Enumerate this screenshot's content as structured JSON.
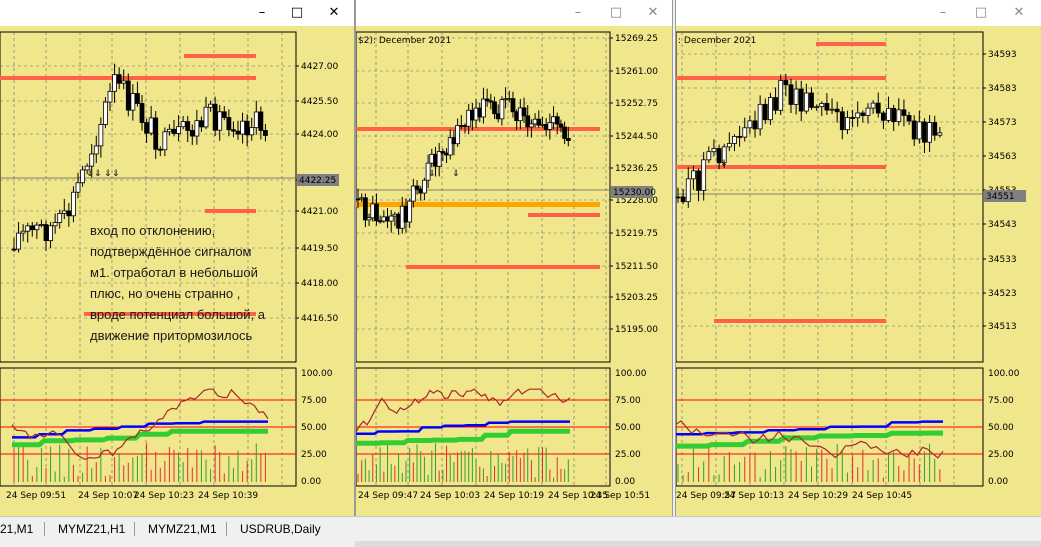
{
  "windows": [
    {
      "id": "w1",
      "active": true,
      "header": "",
      "price_ticks": [
        "4427.00",
        "4425.50",
        "4424.00",
        "4422.25",
        "4421.00",
        "4419.50",
        "4418.00",
        "4416.50"
      ],
      "current_price": "4422.25",
      "indicator_ticks": [
        "100.00",
        "75.00",
        "50.00",
        "25.00",
        "0.00"
      ],
      "time_ticks": [
        "24 Sep 09:51",
        "24 Sep 10:07",
        "24 Sep 10:23",
        "24 Sep 10:39"
      ],
      "annotation": "вход по отклонению,\nподтверждённое сигналом\nм1. отработал в небольшой\nплюс, но очень странно ,\nвроде потенциал большой, а\nдвижение притормозилось"
    },
    {
      "id": "w2",
      "active": false,
      "header": "$2): December 2021",
      "price_ticks": [
        "15269.25",
        "15261.00",
        "15252.75",
        "15244.50",
        "15236.25",
        "15228.00",
        "15219.75",
        "15211.50",
        "15203.25",
        "15195.00"
      ],
      "current_price": "15230.00",
      "indicator_ticks": [
        "100.00",
        "75.00",
        "50.00",
        "25.00",
        "0.00"
      ],
      "time_ticks": [
        "24 Sep 09:47",
        "24 Sep 10:03",
        "24 Sep 10:19",
        "24 Sep 10:35",
        "24 Sep 10:51"
      ]
    },
    {
      "id": "w3",
      "active": false,
      "header": ": December 2021",
      "price_ticks": [
        "34593",
        "34583",
        "34573",
        "34563",
        "34553",
        "34543",
        "34533",
        "34523",
        "34513"
      ],
      "current_price": "34551",
      "indicator_ticks": [
        "100.00",
        "75.00",
        "50.00",
        "25.00",
        "0.00"
      ],
      "time_ticks": [
        "24 Sep 09:57",
        "24 Sep 10:13",
        "24 Sep 10:29",
        "24 Sep 10:45"
      ]
    }
  ],
  "titlebar_icons": {
    "minimize": "minimize-icon",
    "maximize": "maximize-icon",
    "close": "close-icon"
  },
  "tabs": [
    {
      "label": "21,M1"
    },
    {
      "label": "MYMZ21,H1"
    },
    {
      "label": "MYMZ21,M1"
    },
    {
      "label": "USDRUB,Daily"
    }
  ],
  "colors": {
    "chart_bg": "#f0e68c",
    "level_line": "#ff6347",
    "indicator_red": "#a52a2a",
    "indicator_blue": "#0000ff",
    "indicator_green": "#32cd32",
    "orange_level": "#ffa500"
  }
}
